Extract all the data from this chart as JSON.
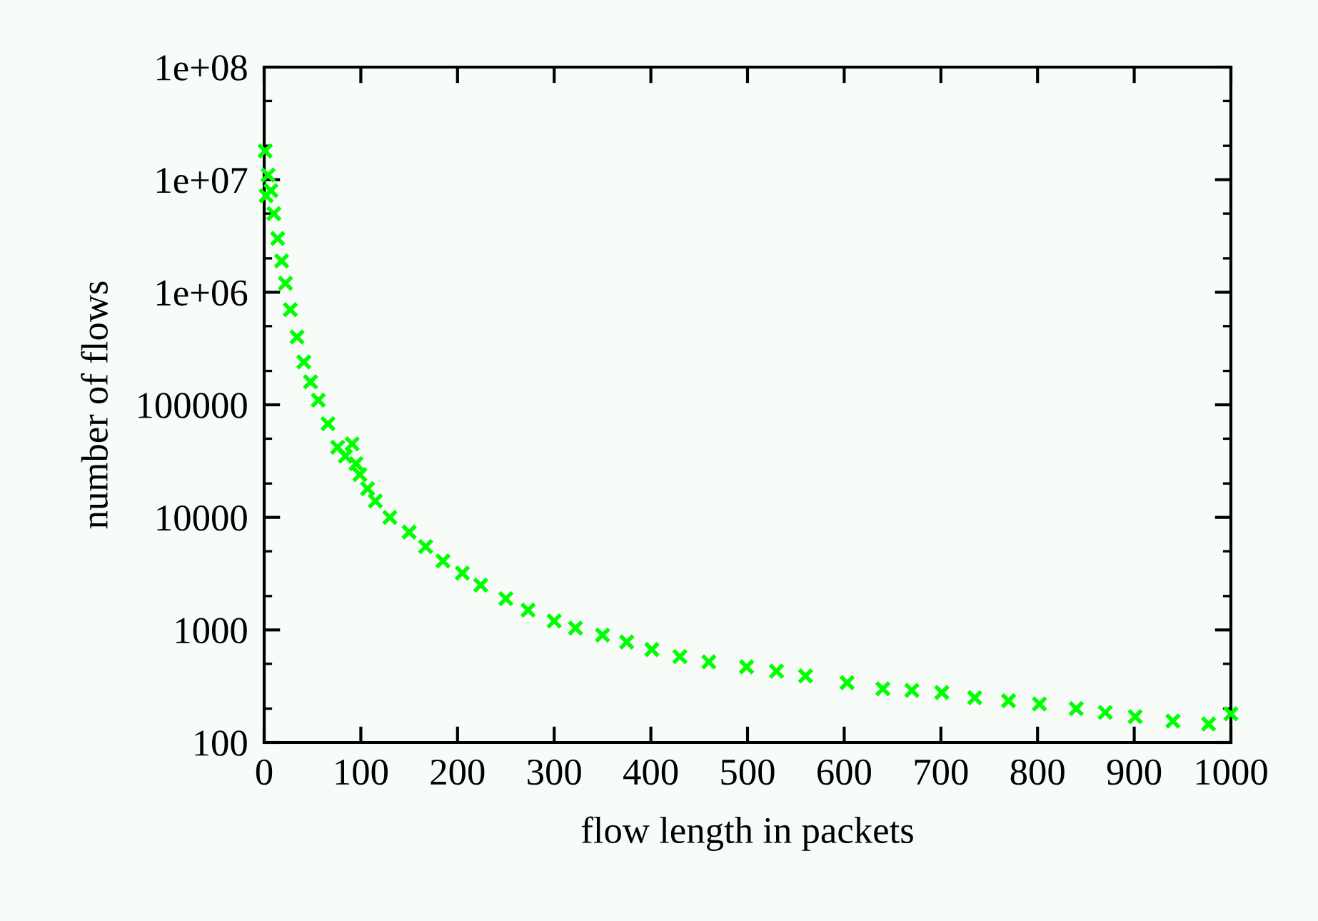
{
  "chart_data": {
    "type": "scatter",
    "xlabel": "flow length in packets",
    "ylabel": "number of flows",
    "x": [
      1,
      2,
      4,
      7,
      10,
      14,
      18,
      22,
      27,
      34,
      41,
      48,
      56,
      66,
      76,
      84,
      91,
      95,
      99,
      107,
      115,
      130,
      150,
      167,
      185,
      205,
      224,
      250,
      273,
      300,
      322,
      350,
      375,
      401,
      430,
      460,
      499,
      530,
      560,
      603,
      640,
      670,
      701,
      735,
      770,
      802,
      840,
      870,
      901,
      940,
      977,
      1000
    ],
    "values": [
      18000000,
      7200000,
      11000000,
      8000000,
      5000000,
      3000000,
      1900000,
      1200000,
      700000,
      400000,
      240000,
      160000,
      110000,
      68000,
      42000,
      35000,
      45000,
      30000,
      24000,
      18000,
      14000,
      10000,
      7400,
      5500,
      4100,
      3200,
      2500,
      1900,
      1500,
      1200,
      1040,
      900,
      780,
      670,
      580,
      520,
      470,
      430,
      390,
      340,
      300,
      290,
      278,
      250,
      235,
      220,
      200,
      185,
      170,
      155,
      146,
      180
    ],
    "color": "#00ff00",
    "marker": "cross",
    "log": "y",
    "grid": false,
    "xlim": [
      0,
      1000
    ],
    "xticks": [
      0,
      100,
      200,
      300,
      400,
      500,
      600,
      700,
      800,
      900,
      1000
    ],
    "ylim": [
      100,
      100000000
    ],
    "yticks": [
      100,
      1000,
      10000,
      100000,
      {
        "value": 1000000,
        "label": "1e+06"
      },
      {
        "value": 10000000,
        "label": "1e+07"
      },
      {
        "value": 100000000,
        "label": "1e+08"
      }
    ]
  }
}
